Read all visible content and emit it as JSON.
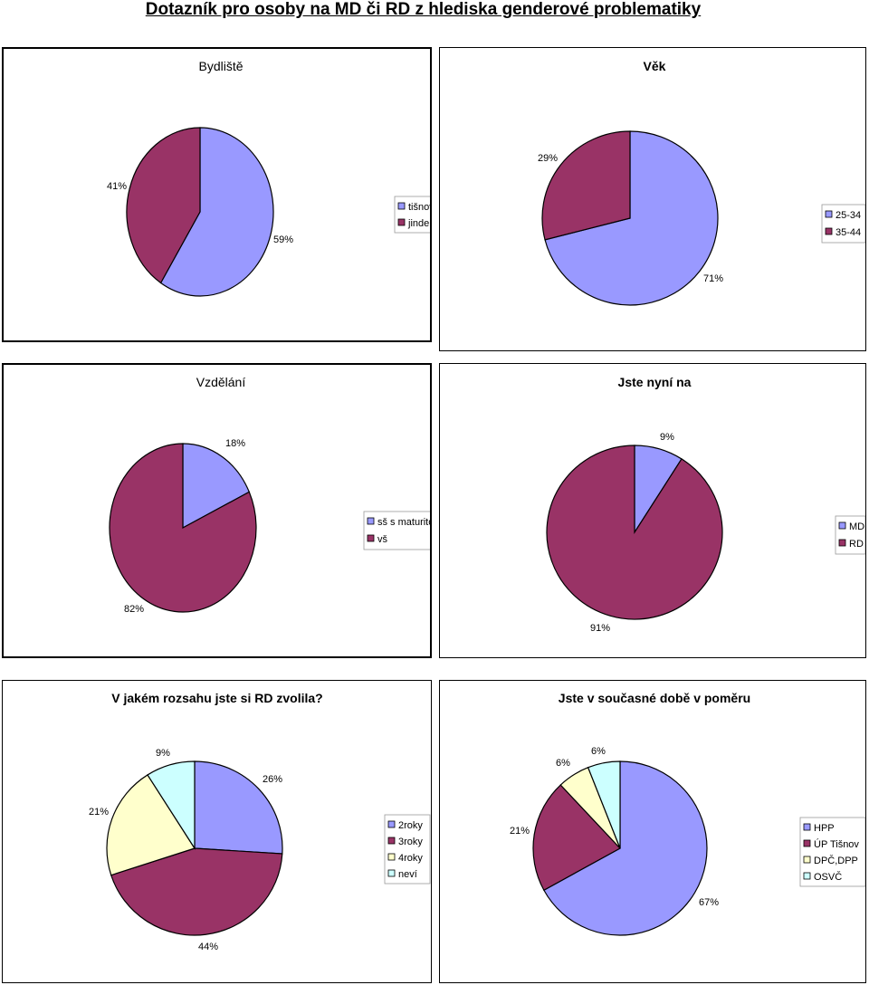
{
  "page_title": "Dotazník pro osoby na MD či RD z hlediska genderové problematiky",
  "colors": {
    "blue": "#9999ff",
    "maroon": "#993366",
    "cream": "#ffffcc",
    "cyan": "#ccffff"
  },
  "chart_data": [
    {
      "type": "pie",
      "title": "Bydliště",
      "categories": [
        "tišnov",
        "jinde"
      ],
      "values": [
        59,
        41
      ],
      "data_labels": [
        "59%",
        "41%"
      ],
      "colors": [
        "#9999ff",
        "#993366"
      ],
      "legend": "right"
    },
    {
      "type": "pie",
      "title": "Věk",
      "categories": [
        "25-34",
        "35-44"
      ],
      "values": [
        71,
        29
      ],
      "data_labels": [
        "71%",
        "29%"
      ],
      "colors": [
        "#9999ff",
        "#993366"
      ],
      "legend": "right"
    },
    {
      "type": "pie",
      "title": "Vzdělání",
      "categories": [
        "sš s maturitou",
        "vš"
      ],
      "values": [
        18,
        82
      ],
      "data_labels": [
        "18%",
        "82%"
      ],
      "colors": [
        "#9999ff",
        "#993366"
      ],
      "legend": "right"
    },
    {
      "type": "pie",
      "title": "Jste nyní na",
      "categories": [
        "MD",
        "RD"
      ],
      "values": [
        9,
        91
      ],
      "data_labels": [
        "9%",
        "91%"
      ],
      "colors": [
        "#9999ff",
        "#993366"
      ],
      "legend": "right"
    },
    {
      "type": "pie",
      "title": "V jakém rozsahu jste si RD zvolila?",
      "categories": [
        "2roky",
        "3roky",
        "4roky",
        "neví"
      ],
      "values": [
        26,
        44,
        21,
        9
      ],
      "data_labels": [
        "26%",
        "44%",
        "21%",
        "9%"
      ],
      "colors": [
        "#9999ff",
        "#993366",
        "#ffffcc",
        "#ccffff"
      ],
      "legend": "right"
    },
    {
      "type": "pie",
      "title": "Jste v současné době v poměru",
      "categories": [
        "HPP",
        "ÚP Tišnov",
        "DPČ,DPP",
        "OSVČ"
      ],
      "values": [
        67,
        21,
        6,
        6
      ],
      "data_labels": [
        "67%",
        "21%",
        "6%",
        "6%"
      ],
      "colors": [
        "#9999ff",
        "#993366",
        "#ffffcc",
        "#ccffff"
      ],
      "legend": "right"
    }
  ]
}
